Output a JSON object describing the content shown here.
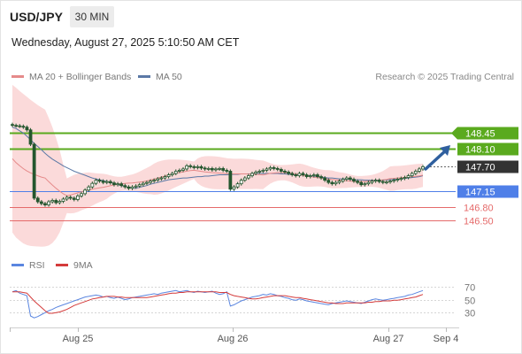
{
  "header": {
    "pair": "USD/JPY",
    "timeframe": "30 MIN",
    "timestamp": "Wednesday, August 27, 2025 5:10:50 AM CET"
  },
  "legend": {
    "ma20": "MA 20 + Bollinger Bands",
    "ma50": "MA 50",
    "credit": "Research © 2025 Trading Central"
  },
  "rsi_legend": {
    "rsi": "RSI",
    "ma9": "9MA"
  },
  "colors": {
    "resistance": "#5aaa1e",
    "support_pivot": "#4f7fe8",
    "support": "#e56a6a",
    "current": "#333333",
    "ma20": "#e58a8a",
    "ma50": "#5b79a6",
    "bollinger": "#fbdada",
    "candle": "#24562e",
    "arrow": "#2f5f9e",
    "rsi": "#5b86e0",
    "rsi_ma": "#d43b3b"
  },
  "chart_data": {
    "type": "candlestick",
    "symbol": "USD/JPY",
    "interval": "30 MIN",
    "ylim": [
      146.25,
      148.85
    ],
    "x_ticks": [
      "Aug 25",
      "Aug 26",
      "Aug 27",
      "Sep 4"
    ],
    "levels": [
      {
        "value": 148.45,
        "label": "148.45",
        "kind": "resistance"
      },
      {
        "value": 148.1,
        "label": "148.10",
        "kind": "resistance"
      },
      {
        "value": 147.7,
        "label": "147.70",
        "kind": "current"
      },
      {
        "value": 147.15,
        "label": "147.15",
        "kind": "pivot"
      },
      {
        "value": 146.8,
        "label": "146.80",
        "kind": "support"
      },
      {
        "value": 146.5,
        "label": "146.50",
        "kind": "support"
      }
    ],
    "closes": [
      148.62,
      148.61,
      148.6,
      148.58,
      148.52,
      148.2,
      147.0,
      146.92,
      146.88,
      146.85,
      146.92,
      146.95,
      146.9,
      146.93,
      146.98,
      147.02,
      147.0,
      146.97,
      147.05,
      147.1,
      147.18,
      147.25,
      147.33,
      147.4,
      147.38,
      147.35,
      147.37,
      147.34,
      147.3,
      147.32,
      147.28,
      147.25,
      147.22,
      147.25,
      147.27,
      147.3,
      147.33,
      147.35,
      147.38,
      147.4,
      147.43,
      147.45,
      147.48,
      147.52,
      147.55,
      147.6,
      147.62,
      147.65,
      147.72,
      147.7,
      147.68,
      147.7,
      147.67,
      147.65,
      147.66,
      147.63,
      147.65,
      147.66,
      147.62,
      147.6,
      147.2,
      147.25,
      147.32,
      147.4,
      147.45,
      147.5,
      147.55,
      147.58,
      147.6,
      147.62,
      147.65,
      147.68,
      147.66,
      147.64,
      147.6,
      147.58,
      147.55,
      147.52,
      147.5,
      147.55,
      147.52,
      147.48,
      147.5,
      147.52,
      147.48,
      147.45,
      147.4,
      147.35,
      147.32,
      147.35,
      147.38,
      147.42,
      147.45,
      147.42,
      147.38,
      147.35,
      147.3,
      147.32,
      147.35,
      147.38,
      147.4,
      147.37,
      147.35,
      147.36,
      147.38,
      147.4,
      147.42,
      147.44,
      147.46,
      147.5,
      147.55,
      147.6,
      147.65,
      147.7
    ],
    "ma50": [
      148.58,
      148.55,
      148.5,
      148.45,
      148.38,
      148.3,
      148.22,
      148.15,
      148.08,
      148.0,
      147.93,
      147.87,
      147.82,
      147.77,
      147.72,
      147.68,
      147.64,
      147.6,
      147.57,
      147.54,
      147.51,
      147.48,
      147.45,
      147.43,
      147.41,
      147.39,
      147.37,
      147.35,
      147.33,
      147.3,
      147.28,
      147.26,
      147.24,
      147.22,
      147.22,
      147.24,
      147.26,
      147.28,
      147.31,
      147.33,
      147.35,
      147.37,
      147.39,
      147.41,
      147.42,
      147.43,
      147.44,
      147.45,
      147.45,
      147.46,
      147.47,
      147.48,
      147.48,
      147.49,
      147.49,
      147.5,
      147.51,
      147.52,
      147.52,
      147.52,
      147.53,
      147.53,
      147.53,
      147.54,
      147.54,
      147.54,
      147.54,
      147.55,
      147.55,
      147.55,
      147.55,
      147.55,
      147.55,
      147.55,
      147.54,
      147.54,
      147.53,
      147.53,
      147.52,
      147.52,
      147.51,
      147.5,
      147.5,
      147.49,
      147.48,
      147.47,
      147.46,
      147.45,
      147.45,
      147.44,
      147.43,
      147.43,
      147.42,
      147.42,
      147.41,
      147.41,
      147.41,
      147.4,
      147.4,
      147.4,
      147.4,
      147.4,
      147.4,
      147.41,
      147.41,
      147.42,
      147.42,
      147.43,
      147.44,
      147.45,
      147.46,
      147.47,
      147.48,
      147.5
    ],
    "rsi_ylim": [
      10,
      82
    ],
    "rsi_ticks": [
      70,
      50,
      30
    ],
    "rsi": [
      62,
      64,
      60,
      58,
      56,
      25,
      22,
      24,
      27,
      30,
      33,
      35,
      38,
      40,
      42,
      44,
      46,
      48,
      50,
      52,
      54,
      55,
      56,
      57,
      56,
      54,
      55,
      53,
      52,
      54,
      52,
      50,
      51,
      53,
      54,
      55,
      56,
      57,
      58,
      59,
      58,
      60,
      61,
      62,
      63,
      64,
      62,
      63,
      64,
      62,
      61,
      63,
      62,
      61,
      62,
      63,
      60,
      58,
      59,
      62,
      40,
      42,
      45,
      48,
      50,
      52,
      54,
      55,
      56,
      58,
      57,
      59,
      58,
      56,
      55,
      53,
      52,
      50,
      49,
      51,
      50,
      48,
      47,
      46,
      45,
      44,
      43,
      42,
      44,
      45,
      46,
      47,
      48,
      47,
      46,
      45,
      44,
      46,
      48,
      50,
      51,
      50,
      49,
      50,
      51,
      52,
      53,
      54,
      55,
      57,
      58,
      60,
      62,
      64
    ],
    "rsi_ma": [
      62,
      62,
      62,
      61,
      60,
      54,
      48,
      43,
      38,
      33,
      29,
      29,
      30,
      31,
      33,
      35,
      38,
      41,
      43,
      45,
      47,
      49,
      51,
      52,
      53,
      54,
      55,
      55,
      55,
      54,
      54,
      53,
      53,
      53,
      53,
      53,
      53,
      53,
      54,
      55,
      56,
      57,
      58,
      59,
      60,
      60,
      61,
      61,
      62,
      62,
      62,
      62,
      62,
      62,
      62,
      62,
      62,
      61,
      61,
      61,
      58,
      56,
      55,
      54,
      53,
      52,
      51,
      51,
      52,
      53,
      54,
      55,
      56,
      56,
      56,
      56,
      55,
      54,
      53,
      53,
      52,
      51,
      50,
      49,
      48,
      47,
      46,
      45,
      45,
      44,
      44,
      44,
      45,
      45,
      45,
      45,
      45,
      45,
      46,
      46,
      47,
      47,
      48,
      48,
      48,
      49,
      49,
      50,
      51,
      52,
      53,
      54,
      56,
      58
    ]
  }
}
